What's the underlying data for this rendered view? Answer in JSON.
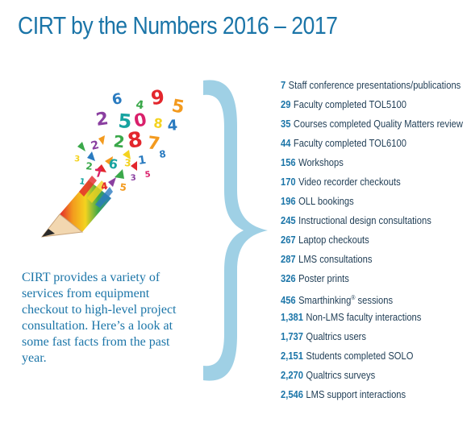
{
  "title": "CIRT by the Numbers 2016 – 2017",
  "intro": "CIRT provides a variety of services from equipment checkout to high-level project consultation. Here’s a look at some fast facts from the past year.",
  "art": {
    "icon": "pencil-with-numbers-illustration",
    "digits": [
      "6",
      "4",
      "9",
      "5",
      "2",
      "5",
      "0",
      "8",
      "4",
      "2",
      "8",
      "7",
      "2",
      "6",
      "7",
      "3",
      "1",
      "2",
      "4",
      "5",
      "3",
      "1",
      "5",
      "3",
      "8"
    ]
  },
  "colors": {
    "accent": "#1b75a8",
    "brace": "#9fd0e5",
    "text": "#1f3d55"
  },
  "stats": [
    {
      "num": "7",
      "label": "Staff conference presentations/publications"
    },
    {
      "num": "29",
      "label": "Faculty completed TOL5100"
    },
    {
      "num": "35",
      "label": "Courses completed Quality Matters review"
    },
    {
      "num": "44",
      "label": "Faculty completed TOL6100"
    },
    {
      "num": "156",
      "label": "Workshops"
    },
    {
      "num": "170",
      "label": "Video recorder checkouts"
    },
    {
      "num": "196",
      "label": "OLL bookings"
    },
    {
      "num": "245",
      "label": "Instructional design consultations"
    },
    {
      "num": "267",
      "label": "Laptop checkouts"
    },
    {
      "num": "287",
      "label": "LMS consultations"
    },
    {
      "num": "326",
      "label": "Poster prints"
    },
    {
      "num": "456",
      "label": "Smarthinking",
      "sup": "®",
      "label_after": " sessions"
    },
    {
      "num": "1,381",
      "label": "Non-LMS faculty interactions"
    },
    {
      "num": "1,737",
      "label": "Qualtrics users"
    },
    {
      "num": "2,151",
      "label": "Students completed SOLO"
    },
    {
      "num": "2,270",
      "label": "Qualtrics surveys"
    },
    {
      "num": "2,546",
      "label": "LMS support interactions"
    }
  ]
}
